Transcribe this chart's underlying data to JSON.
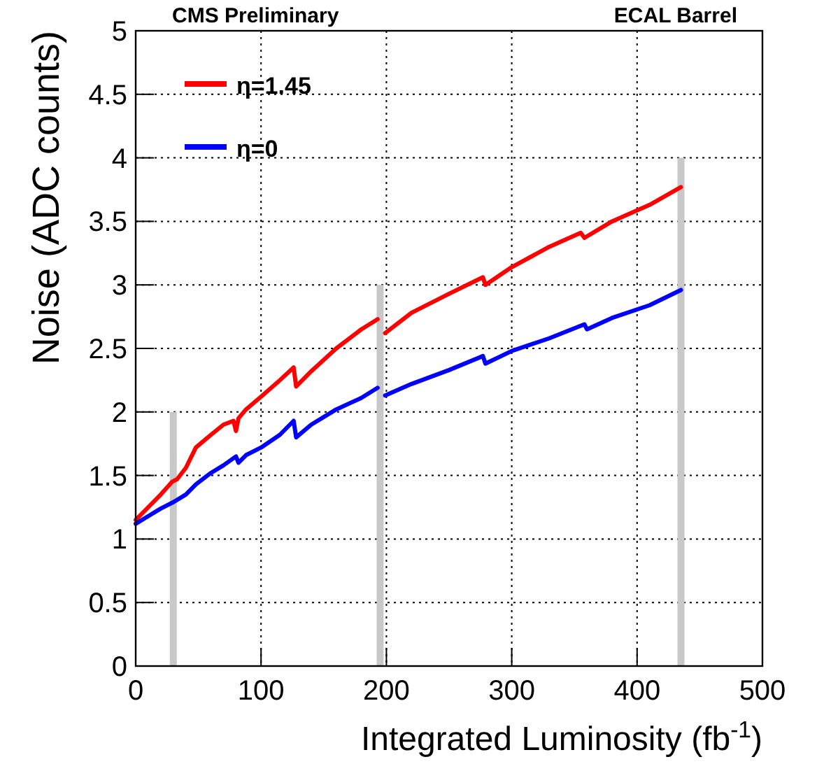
{
  "chart_data": {
    "type": "line",
    "xlabel": "Integrated Luminosity (fb$^{-1}$)",
    "ylabel": "Noise (ADC counts)",
    "annotations": [
      "CMS Preliminary",
      "ECAL Barrel"
    ],
    "xlim": [
      0,
      500
    ],
    "xticks": [
      0,
      100,
      200,
      300,
      400,
      500
    ],
    "ylim": [
      0,
      5
    ],
    "yticks": [
      0,
      0.5,
      1,
      1.5,
      2,
      2.5,
      3,
      3.5,
      4,
      4.5,
      5
    ],
    "grid": true,
    "legend": "top left",
    "line_style": "solid",
    "series": [
      {
        "type": "bar",
        "color": "#c8c8c8",
        "x": [
          30,
          195,
          435
        ],
        "values": [
          2,
          3,
          4
        ]
      },
      {
        "name": "η=1.45",
        "color": "#ff0000",
        "x": [
          0,
          10,
          20,
          29,
          33,
          40,
          48,
          60,
          70,
          78,
          80,
          82,
          88,
          100,
          115,
          126,
          128,
          140,
          160,
          180,
          193,
          197,
          199,
          220,
          250,
          277,
          279,
          300,
          330,
          355,
          358,
          380,
          410,
          435
        ],
        "values": [
          1.15,
          1.25,
          1.35,
          1.45,
          1.47,
          1.56,
          1.72,
          1.82,
          1.9,
          1.93,
          1.85,
          1.95,
          2.02,
          2.12,
          2.25,
          2.35,
          2.2,
          2.32,
          2.5,
          2.65,
          2.73,
          null,
          2.62,
          2.78,
          2.93,
          3.06,
          3.0,
          3.14,
          3.3,
          3.41,
          3.37,
          3.5,
          3.63,
          3.77
        ]
      },
      {
        "name": "η=0",
        "color": "#0000ff",
        "x": [
          0,
          10,
          20,
          30,
          40,
          48,
          60,
          70,
          80,
          82,
          88,
          100,
          115,
          126,
          128,
          140,
          160,
          180,
          193,
          197,
          199,
          220,
          250,
          277,
          279,
          300,
          330,
          358,
          360,
          380,
          410,
          435
        ],
        "values": [
          1.12,
          1.18,
          1.24,
          1.29,
          1.35,
          1.43,
          1.52,
          1.58,
          1.65,
          1.6,
          1.66,
          1.72,
          1.82,
          1.93,
          1.8,
          1.9,
          2.02,
          2.11,
          2.19,
          null,
          2.13,
          2.22,
          2.33,
          2.44,
          2.38,
          2.48,
          2.58,
          2.69,
          2.65,
          2.74,
          2.84,
          2.96
        ]
      }
    ]
  }
}
